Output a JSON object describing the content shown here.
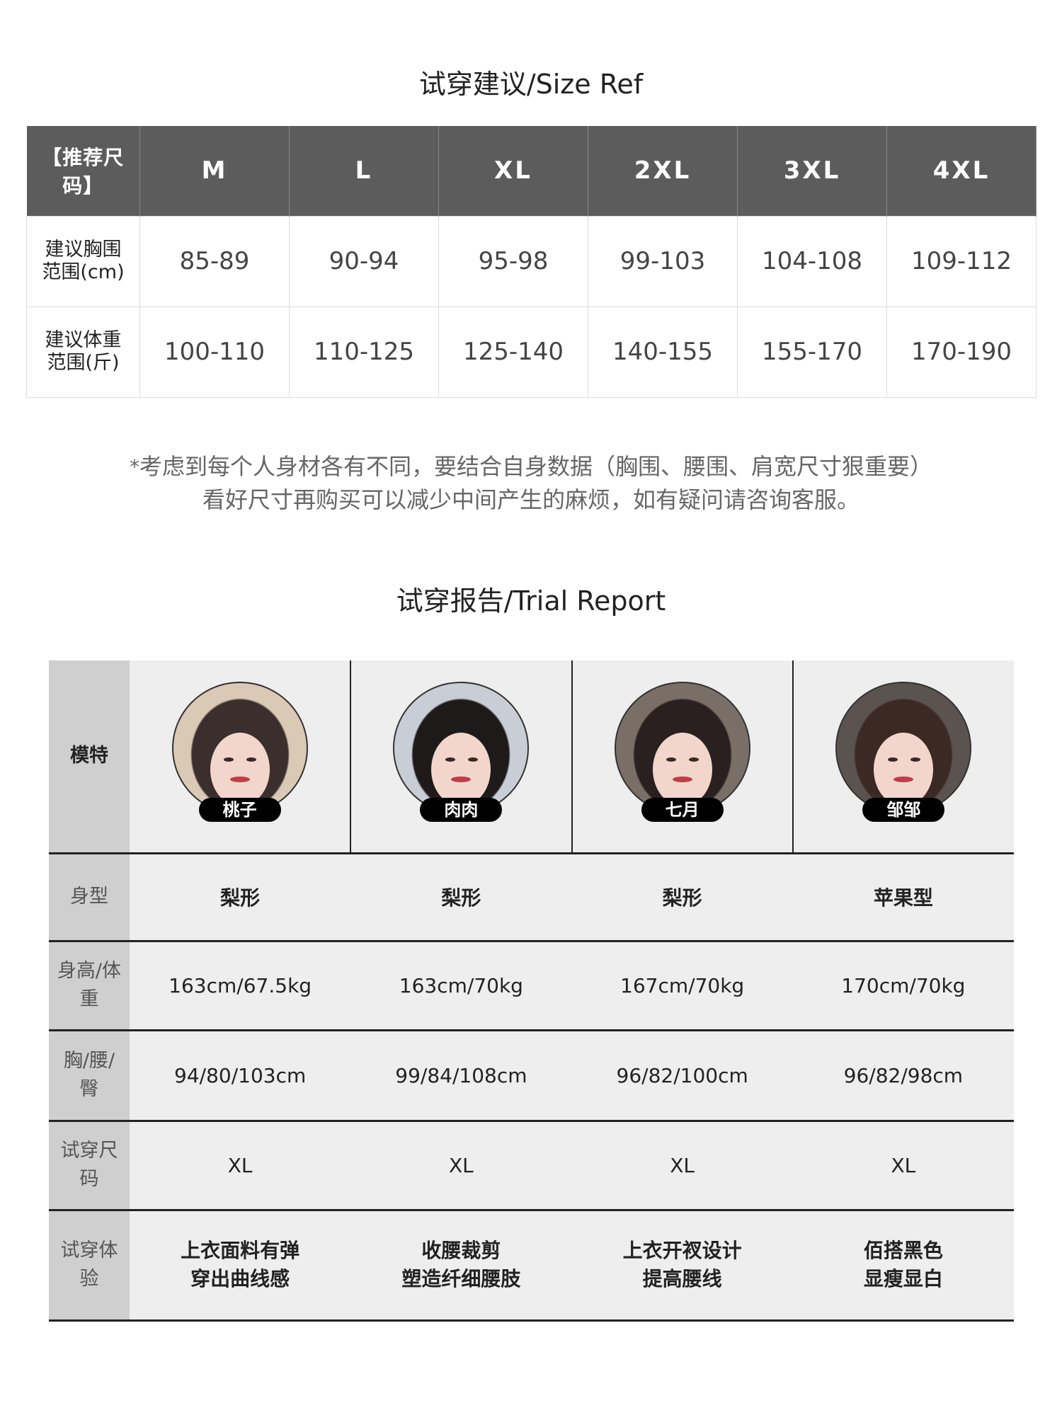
{
  "size_ref": {
    "title": "试穿建议/Size Ref",
    "header": [
      "【推荐尺码】",
      "M",
      "L",
      "XL",
      "2XL",
      "3XL",
      "4XL"
    ],
    "rows": [
      {
        "label": [
          "建议胸围",
          "范围(cm)"
        ],
        "values": [
          "85-89",
          "90-94",
          "95-98",
          "99-103",
          "104-108",
          "109-112"
        ]
      },
      {
        "label": [
          "建议体重",
          "范围(斤)"
        ],
        "values": [
          "100-110",
          "110-125",
          "125-140",
          "140-155",
          "155-170",
          "170-190"
        ]
      }
    ]
  },
  "note": {
    "star": "*",
    "line1": "考虑到每个人身材各有不同，要结合自身数据（胸围、腰围、肩宽尺寸狠重要）",
    "line2": "看好尺寸再购买可以减少中间产生的麻烦，如有疑问请咨询客服。"
  },
  "trial": {
    "title": "试穿报告/Trial Report",
    "labels": {
      "model": "模特",
      "body": [
        "身型"
      ],
      "hw": [
        "身高/体",
        "重"
      ],
      "bwh": [
        "胸/腰/",
        "臀"
      ],
      "size": [
        "试穿尺",
        "码"
      ],
      "exp": [
        "试穿体",
        "验"
      ]
    },
    "models": [
      {
        "name": "桃子",
        "body": "梨形",
        "hw": "163cm/67.5kg",
        "bwh": "94/80/103cm",
        "size": "XL",
        "exp": [
          "上衣面料有弹",
          "穿出曲线感"
        ]
      },
      {
        "name": "肉肉",
        "body": "梨形",
        "hw": "163cm/70kg",
        "bwh": "99/84/108cm",
        "size": "XL",
        "exp": [
          "收腰裁剪",
          "塑造纤细腰肢"
        ]
      },
      {
        "name": "七月",
        "body": "梨形",
        "hw": "167cm/70kg",
        "bwh": "96/82/100cm",
        "size": "XL",
        "exp": [
          "上衣开衩设计",
          "提高腰线"
        ]
      },
      {
        "name": "邹邹",
        "body": "苹果型",
        "hw": "170cm/70kg",
        "bwh": "96/82/98cm",
        "size": "XL",
        "exp": [
          "佰搭黑色",
          "显瘦显白"
        ]
      }
    ]
  }
}
